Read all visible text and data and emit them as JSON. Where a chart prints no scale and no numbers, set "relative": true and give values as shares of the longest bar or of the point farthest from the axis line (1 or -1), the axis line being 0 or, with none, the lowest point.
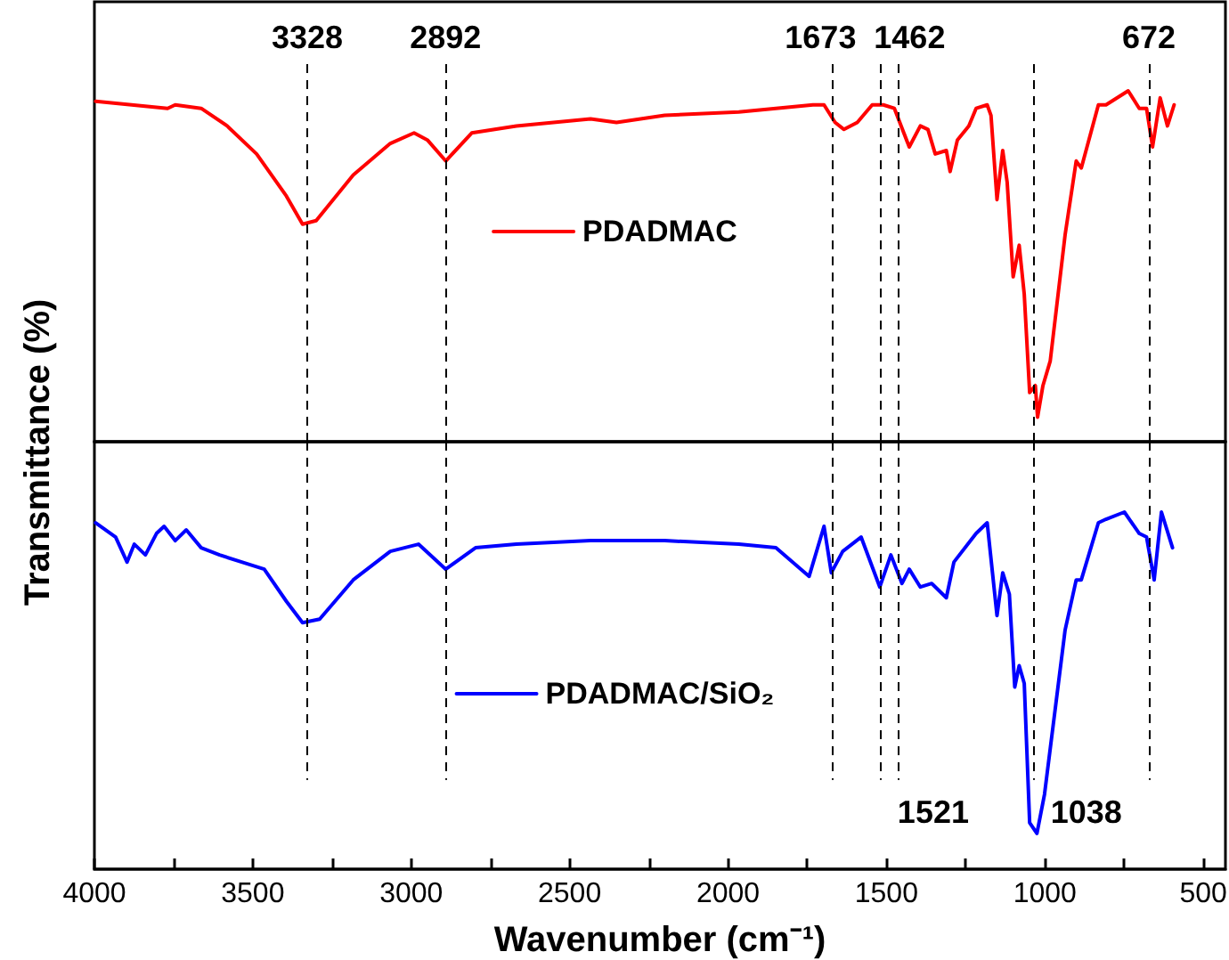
{
  "chart_data": [
    {
      "type": "line",
      "relative": true,
      "ylabel": "Transmittance (%)",
      "xlim": [
        4000,
        430
      ],
      "tick_labels": false,
      "grid": false,
      "legend": "center",
      "marker": "none",
      "line_style": "solid",
      "series": [
        {
          "name": "PDADMAC",
          "color": "#ff0000",
          "x": [
            3996,
            3769,
            3745,
            3663,
            3581,
            3488,
            3394,
            3343,
            3300,
            3183,
            3066,
            2991,
            2949,
            2891,
            2809,
            2668,
            2434,
            2352,
            2200,
            1966,
            1732,
            1697,
            1662,
            1634,
            1592,
            1545,
            1510,
            1475,
            1428,
            1393,
            1369,
            1346,
            1311,
            1299,
            1276,
            1240,
            1217,
            1182,
            1170,
            1151,
            1133,
            1119,
            1100,
            1081,
            1065,
            1048,
            1030,
            1023,
            1006,
            983,
            936,
            901,
            885,
            831,
            807,
            737,
            702,
            679,
            660,
            636,
            613,
            592
          ],
          "values": [
            0.97,
            0.95,
            0.96,
            0.95,
            0.9,
            0.82,
            0.7,
            0.62,
            0.63,
            0.76,
            0.85,
            0.88,
            0.86,
            0.8,
            0.88,
            0.9,
            0.92,
            0.91,
            0.93,
            0.94,
            0.96,
            0.96,
            0.91,
            0.89,
            0.91,
            0.96,
            0.96,
            0.95,
            0.84,
            0.9,
            0.89,
            0.82,
            0.83,
            0.77,
            0.86,
            0.9,
            0.95,
            0.96,
            0.93,
            0.69,
            0.83,
            0.74,
            0.47,
            0.56,
            0.42,
            0.14,
            0.16,
            0.07,
            0.16,
            0.23,
            0.59,
            0.8,
            0.78,
            0.96,
            0.96,
            1.0,
            0.95,
            0.95,
            0.84,
            0.98,
            0.9,
            0.96
          ]
        }
      ],
      "ref_lines": [
        {
          "axis": "x",
          "value": 3328,
          "label": "3328",
          "line_style": "dashed",
          "color": "#000000"
        },
        {
          "axis": "x",
          "value": 2892,
          "label": "2892",
          "line_style": "dashed",
          "color": "#000000"
        },
        {
          "axis": "x",
          "value": 1673,
          "label": "1673",
          "line_style": "dashed",
          "color": "#000000"
        },
        {
          "axis": "x",
          "value": 1521,
          "line_style": "dashed",
          "color": "#000000"
        },
        {
          "axis": "x",
          "value": 1462,
          "label": "1462",
          "line_style": "dashed",
          "color": "#000000"
        },
        {
          "axis": "x",
          "value": 1038,
          "line_style": "dashed",
          "color": "#000000"
        },
        {
          "axis": "x",
          "value": 672,
          "label": "672",
          "line_style": "dashed",
          "color": "#000000"
        }
      ]
    },
    {
      "type": "line",
      "relative": true,
      "xlabel": "Wavenumber (cm⁻¹)",
      "xlim": [
        4000,
        430
      ],
      "tick_labels": "x",
      "grid": false,
      "legend": "center",
      "marker": "none",
      "line_style": "solid",
      "xticks": [
        4000,
        {
          "value": 3750,
          "label": null
        },
        3500,
        {
          "value": 3250,
          "label": null
        },
        3000,
        {
          "value": 2750,
          "label": null
        },
        2500,
        {
          "value": 2250,
          "label": null
        },
        2000,
        {
          "value": 1750,
          "label": null
        },
        1500,
        {
          "value": 1250,
          "label": null
        },
        1000,
        {
          "value": 750,
          "label": null
        },
        500
      ],
      "series": [
        {
          "name": "PDADMAC/SiO₂",
          "color": "#0000ff",
          "x": [
            3996,
            3933,
            3897,
            3874,
            3839,
            3804,
            3780,
            3745,
            3710,
            3663,
            3605,
            3535,
            3464,
            3394,
            3343,
            3289,
            3183,
            3066,
            2977,
            2891,
            2797,
            2668,
            2434,
            2200,
            1966,
            1849,
            1744,
            1697,
            1674,
            1638,
            1580,
            1521,
            1486,
            1451,
            1428,
            1393,
            1357,
            1311,
            1287,
            1217,
            1182,
            1151,
            1133,
            1112,
            1095,
            1081,
            1065,
            1048,
            1025,
            1001,
            936,
            901,
            885,
            831,
            807,
            749,
            702,
            679,
            655,
            632,
            597
          ],
          "values": [
            0.97,
            0.93,
            0.86,
            0.91,
            0.88,
            0.94,
            0.96,
            0.92,
            0.95,
            0.9,
            0.88,
            0.86,
            0.84,
            0.75,
            0.69,
            0.7,
            0.81,
            0.89,
            0.91,
            0.84,
            0.9,
            0.91,
            0.92,
            0.92,
            0.91,
            0.9,
            0.82,
            0.96,
            0.83,
            0.89,
            0.93,
            0.79,
            0.88,
            0.8,
            0.84,
            0.79,
            0.8,
            0.76,
            0.86,
            0.94,
            0.97,
            0.71,
            0.83,
            0.77,
            0.51,
            0.57,
            0.52,
            0.13,
            0.1,
            0.21,
            0.67,
            0.81,
            0.81,
            0.97,
            0.98,
            1.0,
            0.94,
            0.93,
            0.81,
            1.0,
            0.9
          ]
        }
      ],
      "ref_lines": [
        {
          "axis": "x",
          "value": 3328,
          "line_style": "dashed",
          "color": "#000000"
        },
        {
          "axis": "x",
          "value": 2892,
          "line_style": "dashed",
          "color": "#000000"
        },
        {
          "axis": "x",
          "value": 1673,
          "line_style": "dashed",
          "color": "#000000"
        },
        {
          "axis": "x",
          "value": 1521,
          "label": "1521",
          "line_style": "dashed",
          "color": "#000000"
        },
        {
          "axis": "x",
          "value": 1462,
          "line_style": "dashed",
          "color": "#000000"
        },
        {
          "axis": "x",
          "value": 1038,
          "label": "1038",
          "line_style": "dashed",
          "color": "#000000"
        },
        {
          "axis": "x",
          "value": 672,
          "line_style": "dashed",
          "color": "#000000"
        }
      ]
    }
  ]
}
